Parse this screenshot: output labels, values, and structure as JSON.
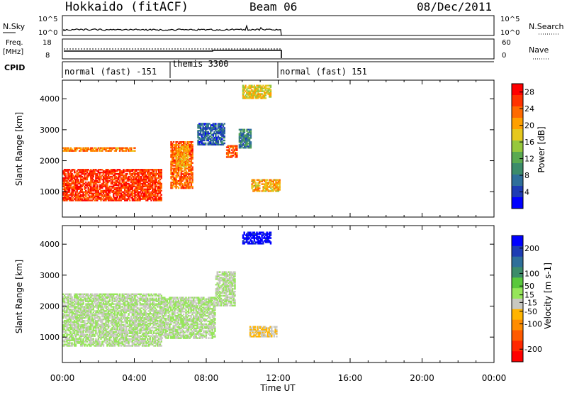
{
  "header": {
    "station": "Hokkaido (fitACF)",
    "beam": "Beam 06",
    "date": "08/Dec/2011"
  },
  "strip_panels": {
    "noise": {
      "left_label": "N.Sky",
      "right_label": "N.Search",
      "left_ticks": [
        "10^5",
        "10^0"
      ],
      "right_ticks": [
        "10^5",
        "10^0"
      ]
    },
    "frequency": {
      "left_label_line1": "Freq.",
      "left_label_line2": "[MHz]",
      "left_ticks": [
        "18",
        "8"
      ],
      "right_label": "Nave",
      "right_ticks": [
        "60",
        "0"
      ]
    },
    "cpid": {
      "label": "CPID",
      "segments": [
        {
          "label": "normal (fast) -151",
          "start": "00:00",
          "end": "06:00"
        },
        {
          "label": "themis 3300",
          "start": "06:00",
          "end": "12:00"
        },
        {
          "label": "normal (fast) 151",
          "start": "12:00",
          "end": "24:00"
        }
      ]
    }
  },
  "colors": {
    "power_scale": [
      "#0000ff",
      "#1e3cb4",
      "#2f6f9a",
      "#3c8c6a",
      "#5aaa50",
      "#96c83c",
      "#e6c81e",
      "#ffa000",
      "#ff6a00",
      "#ff3200",
      "#ff0000"
    ],
    "velocity_scale": [
      "#0000ff",
      "#1e3cb4",
      "#2f6f9a",
      "#3c8c6a",
      "#5ac83c",
      "#96e65a",
      "#c8c8c0",
      "#ffb400",
      "#ff8c00",
      "#ff5a00",
      "#ff2800",
      "#ff0000"
    ],
    "ground_scatter": "#c8c8c0"
  },
  "chart_data": [
    {
      "type": "heatmap",
      "title": "Power",
      "ylabel": "Slant Range [km]",
      "xlabel": "Time UT",
      "y_ticks": [
        1000,
        2000,
        3000,
        4000
      ],
      "ylim": [
        180,
        4600
      ],
      "xlim": [
        0,
        24
      ],
      "colorbar_label": "Power [dB]",
      "colorbar_ticks": [
        4,
        8,
        12,
        16,
        20,
        24,
        28
      ],
      "colorbar_range": [
        0,
        30
      ],
      "regions": [
        {
          "t": [
            0.0,
            5.5
          ],
          "range": [
            700,
            1700
          ],
          "value": 26
        },
        {
          "t": [
            0.0,
            4.0
          ],
          "range": [
            2300,
            2420
          ],
          "value": 22
        },
        {
          "t": [
            6.0,
            7.2
          ],
          "range": [
            1100,
            2600
          ],
          "value": 24
        },
        {
          "t": [
            6.3,
            7.0
          ],
          "range": [
            1800,
            2500
          ],
          "value": 20
        },
        {
          "t": [
            7.5,
            9.0
          ],
          "range": [
            2500,
            3200
          ],
          "value": 6
        },
        {
          "t": [
            9.1,
            9.7
          ],
          "range": [
            2100,
            2500
          ],
          "value": 25
        },
        {
          "t": [
            9.8,
            10.5
          ],
          "range": [
            2400,
            3000
          ],
          "value": 8
        },
        {
          "t": [
            10.5,
            12.1
          ],
          "range": [
            1000,
            1400
          ],
          "value": 20
        },
        {
          "t": [
            10.0,
            11.6
          ],
          "range": [
            4000,
            4450
          ],
          "value": 18
        }
      ]
    },
    {
      "type": "heatmap",
      "title": "Velocity",
      "ylabel": "Slant Range [km]",
      "xlabel": "Time UT",
      "y_ticks": [
        1000,
        2000,
        3000,
        4000
      ],
      "ylim": [
        180,
        4600
      ],
      "xlim": [
        0,
        24
      ],
      "x_tick_labels": [
        "00:00",
        "04:00",
        "08:00",
        "12:00",
        "16:00",
        "20:00",
        "00:00"
      ],
      "colorbar_label": "Velocity [m s-1]",
      "colorbar_ticks": [
        200,
        100,
        50,
        15,
        -15,
        -50,
        -100,
        -200
      ],
      "colorbar_range": [
        -250,
        250
      ],
      "regions": [
        {
          "t": [
            0.0,
            5.5
          ],
          "range": [
            700,
            2400
          ],
          "value": 0
        },
        {
          "t": [
            5.5,
            8.5
          ],
          "range": [
            950,
            2300
          ],
          "value": 0
        },
        {
          "t": [
            8.5,
            9.6
          ],
          "range": [
            2000,
            3100
          ],
          "value": 0
        },
        {
          "t": [
            10.4,
            11.9
          ],
          "range": [
            1000,
            1350
          ],
          "value": -40
        },
        {
          "t": [
            10.0,
            11.6
          ],
          "range": [
            4000,
            4400
          ],
          "value": 220
        }
      ]
    }
  ]
}
